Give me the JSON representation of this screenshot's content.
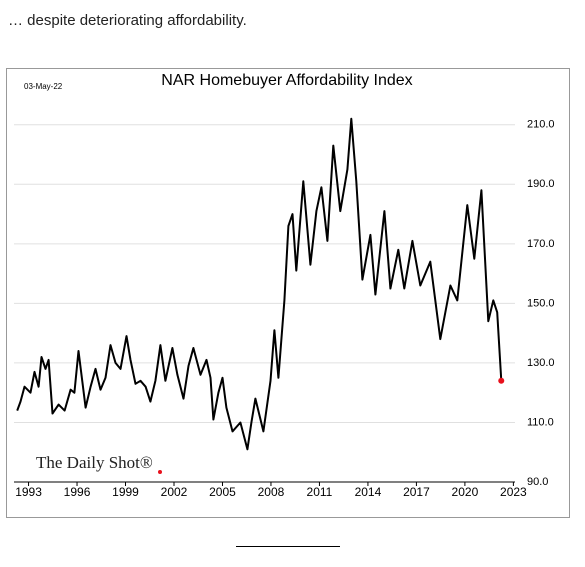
{
  "caption": "… despite deteriorating affordability.",
  "chart_data": {
    "type": "line",
    "title": "NAR Homebuyer Affordability Index",
    "date": "03-May-22",
    "watermark": "The Daily Shot®",
    "x": [
      1992.3,
      1992.5,
      1992.75,
      1993.12,
      1993.37,
      1993.62,
      1993.8,
      1994.05,
      1994.24,
      1994.48,
      1994.86,
      1995.23,
      1995.6,
      1995.84,
      1996.09,
      1996.53,
      1996.84,
      1997.14,
      1997.45,
      1997.76,
      1998.07,
      1998.38,
      1998.69,
      1999.06,
      1999.31,
      1999.62,
      1999.93,
      2000.24,
      2000.54,
      2000.85,
      2001.16,
      2001.47,
      2001.9,
      2002.21,
      2002.59,
      2002.9,
      2003.2,
      2003.64,
      2004.01,
      2004.26,
      2004.44,
      2004.75,
      2005.0,
      2005.24,
      2005.62,
      2006.11,
      2006.54,
      2006.79,
      2007.04,
      2007.53,
      2007.97,
      2008.21,
      2008.46,
      2008.83,
      2009.08,
      2009.33,
      2009.57,
      2010.0,
      2010.44,
      2010.81,
      2011.12,
      2011.49,
      2011.86,
      2012.29,
      2012.73,
      2012.97,
      2013.28,
      2013.66,
      2014.15,
      2014.46,
      2015.02,
      2015.39,
      2015.88,
      2016.25,
      2016.75,
      2017.24,
      2017.86,
      2018.48,
      2019.1,
      2019.53,
      2020.15,
      2020.58,
      2021.02,
      2021.45,
      2021.76,
      2022.0,
      2022.25
    ],
    "series": [
      {
        "name": "NAR Homebuyer Affordability Index",
        "color": "#000000",
        "values": [
          114,
          117,
          122,
          120,
          127,
          122,
          132,
          128,
          131,
          113,
          116,
          114,
          121,
          120,
          134,
          115,
          122,
          128,
          121,
          125,
          136,
          130,
          128,
          139,
          131,
          123,
          124,
          122,
          117,
          124,
          136,
          124,
          135,
          126,
          118,
          129,
          135,
          126,
          131,
          125,
          111,
          120,
          125,
          115,
          107,
          110,
          101,
          110,
          118,
          107,
          124,
          141,
          125,
          151,
          176,
          180,
          161,
          191,
          163,
          181,
          189,
          171,
          203,
          181,
          195,
          212,
          191,
          158,
          173,
          153,
          181,
          155,
          168,
          155,
          171,
          156,
          164,
          138,
          156,
          151,
          183,
          165,
          188,
          144,
          151,
          147,
          124
        ]
      }
    ],
    "last_point_color": "#e8101c",
    "xlim": [
      1992.1,
      2023.1
    ],
    "xticks": [
      1993,
      1996,
      1999,
      2002,
      2005,
      2008,
      2011,
      2014,
      2017,
      2020,
      2023
    ],
    "ylim": [
      90,
      220
    ],
    "yticks": [
      {
        "value": 90,
        "label": "90.0"
      },
      {
        "value": 110,
        "label": "110.0"
      },
      {
        "value": 130,
        "label": "130.0"
      },
      {
        "value": 150,
        "label": "150.0"
      },
      {
        "value": 170,
        "label": "170.0"
      },
      {
        "value": 190,
        "label": "190.0"
      },
      {
        "value": 210,
        "label": "210.0"
      }
    ],
    "grid": true
  }
}
